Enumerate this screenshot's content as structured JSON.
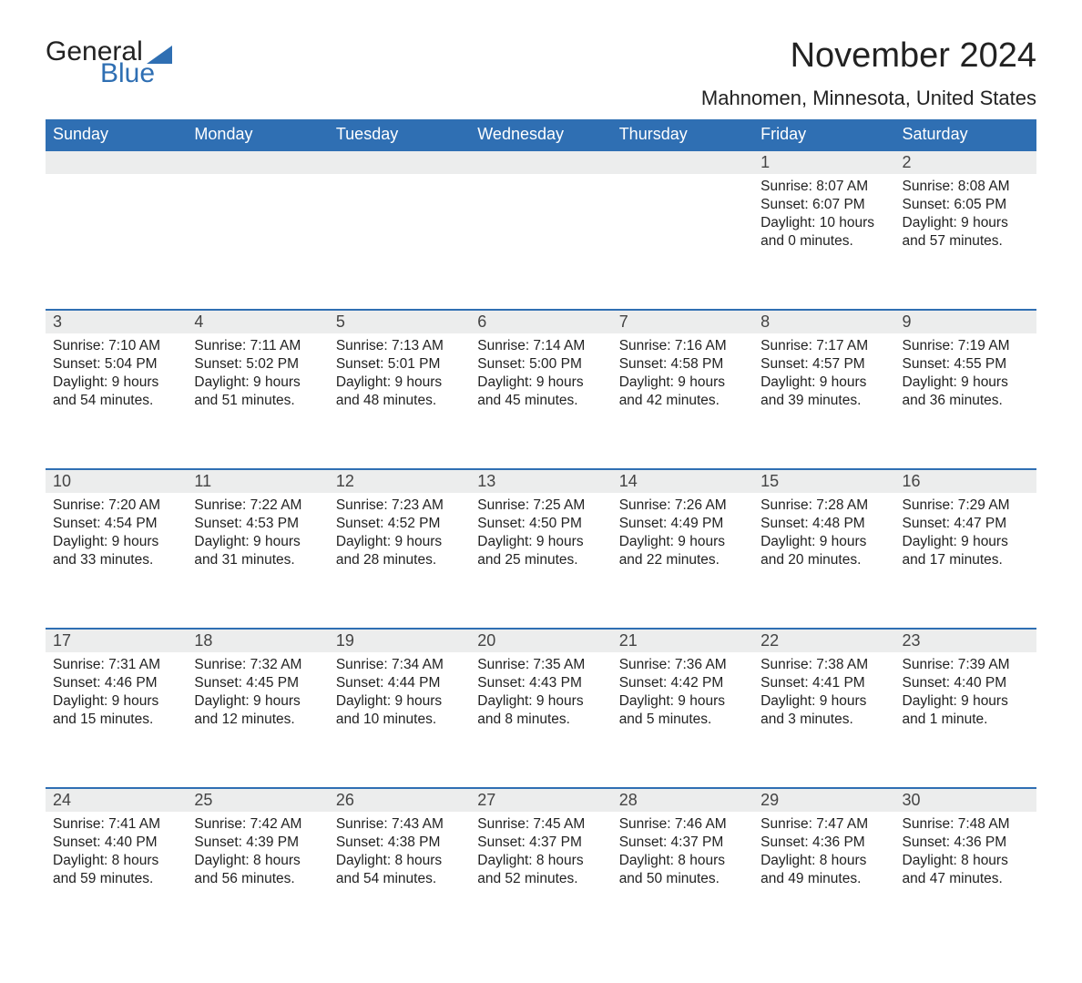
{
  "logo": {
    "text1": "General",
    "text2": "Blue"
  },
  "title": "November 2024",
  "location": "Mahnomen, Minnesota, United States",
  "colors": {
    "header_bg": "#2f6fb3",
    "header_text": "#ffffff",
    "daynum_bg": "#eceded",
    "row_border": "#2f6fb3",
    "body_text": "#222222"
  },
  "day_headers": [
    "Sunday",
    "Monday",
    "Tuesday",
    "Wednesday",
    "Thursday",
    "Friday",
    "Saturday"
  ],
  "weeks": [
    [
      null,
      null,
      null,
      null,
      null,
      {
        "n": "1",
        "sr": "8:07 AM",
        "ss": "6:07 PM",
        "dl": "10 hours and 0 minutes."
      },
      {
        "n": "2",
        "sr": "8:08 AM",
        "ss": "6:05 PM",
        "dl": "9 hours and 57 minutes."
      }
    ],
    [
      {
        "n": "3",
        "sr": "7:10 AM",
        "ss": "5:04 PM",
        "dl": "9 hours and 54 minutes."
      },
      {
        "n": "4",
        "sr": "7:11 AM",
        "ss": "5:02 PM",
        "dl": "9 hours and 51 minutes."
      },
      {
        "n": "5",
        "sr": "7:13 AM",
        "ss": "5:01 PM",
        "dl": "9 hours and 48 minutes."
      },
      {
        "n": "6",
        "sr": "7:14 AM",
        "ss": "5:00 PM",
        "dl": "9 hours and 45 minutes."
      },
      {
        "n": "7",
        "sr": "7:16 AM",
        "ss": "4:58 PM",
        "dl": "9 hours and 42 minutes."
      },
      {
        "n": "8",
        "sr": "7:17 AM",
        "ss": "4:57 PM",
        "dl": "9 hours and 39 minutes."
      },
      {
        "n": "9",
        "sr": "7:19 AM",
        "ss": "4:55 PM",
        "dl": "9 hours and 36 minutes."
      }
    ],
    [
      {
        "n": "10",
        "sr": "7:20 AM",
        "ss": "4:54 PM",
        "dl": "9 hours and 33 minutes."
      },
      {
        "n": "11",
        "sr": "7:22 AM",
        "ss": "4:53 PM",
        "dl": "9 hours and 31 minutes."
      },
      {
        "n": "12",
        "sr": "7:23 AM",
        "ss": "4:52 PM",
        "dl": "9 hours and 28 minutes."
      },
      {
        "n": "13",
        "sr": "7:25 AM",
        "ss": "4:50 PM",
        "dl": "9 hours and 25 minutes."
      },
      {
        "n": "14",
        "sr": "7:26 AM",
        "ss": "4:49 PM",
        "dl": "9 hours and 22 minutes."
      },
      {
        "n": "15",
        "sr": "7:28 AM",
        "ss": "4:48 PM",
        "dl": "9 hours and 20 minutes."
      },
      {
        "n": "16",
        "sr": "7:29 AM",
        "ss": "4:47 PM",
        "dl": "9 hours and 17 minutes."
      }
    ],
    [
      {
        "n": "17",
        "sr": "7:31 AM",
        "ss": "4:46 PM",
        "dl": "9 hours and 15 minutes."
      },
      {
        "n": "18",
        "sr": "7:32 AM",
        "ss": "4:45 PM",
        "dl": "9 hours and 12 minutes."
      },
      {
        "n": "19",
        "sr": "7:34 AM",
        "ss": "4:44 PM",
        "dl": "9 hours and 10 minutes."
      },
      {
        "n": "20",
        "sr": "7:35 AM",
        "ss": "4:43 PM",
        "dl": "9 hours and 8 minutes."
      },
      {
        "n": "21",
        "sr": "7:36 AM",
        "ss": "4:42 PM",
        "dl": "9 hours and 5 minutes."
      },
      {
        "n": "22",
        "sr": "7:38 AM",
        "ss": "4:41 PM",
        "dl": "9 hours and 3 minutes."
      },
      {
        "n": "23",
        "sr": "7:39 AM",
        "ss": "4:40 PM",
        "dl": "9 hours and 1 minute."
      }
    ],
    [
      {
        "n": "24",
        "sr": "7:41 AM",
        "ss": "4:40 PM",
        "dl": "8 hours and 59 minutes."
      },
      {
        "n": "25",
        "sr": "7:42 AM",
        "ss": "4:39 PM",
        "dl": "8 hours and 56 minutes."
      },
      {
        "n": "26",
        "sr": "7:43 AM",
        "ss": "4:38 PM",
        "dl": "8 hours and 54 minutes."
      },
      {
        "n": "27",
        "sr": "7:45 AM",
        "ss": "4:37 PM",
        "dl": "8 hours and 52 minutes."
      },
      {
        "n": "28",
        "sr": "7:46 AM",
        "ss": "4:37 PM",
        "dl": "8 hours and 50 minutes."
      },
      {
        "n": "29",
        "sr": "7:47 AM",
        "ss": "4:36 PM",
        "dl": "8 hours and 49 minutes."
      },
      {
        "n": "30",
        "sr": "7:48 AM",
        "ss": "4:36 PM",
        "dl": "8 hours and 47 minutes."
      }
    ]
  ],
  "labels": {
    "sunrise": "Sunrise: ",
    "sunset": "Sunset: ",
    "daylight": "Daylight: "
  }
}
